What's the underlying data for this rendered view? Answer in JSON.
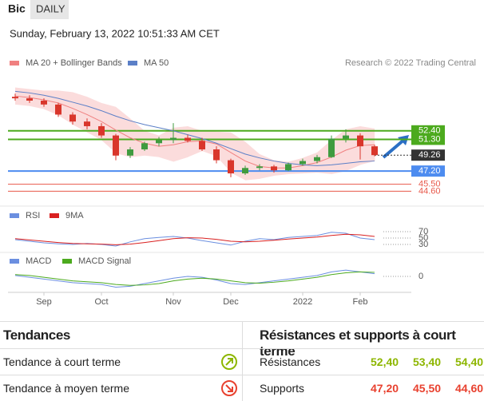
{
  "header": {
    "symbol": "Bic",
    "period": "DAILY",
    "date": "Sunday, February 13, 2022 10:51:33 AM CET",
    "source": "Research © 2022 Trading Central"
  },
  "chart_data": [
    {
      "type": "candlestick",
      "categories": [
        null,
        null,
        "Sep",
        null,
        null,
        null,
        "Oct",
        null,
        null,
        null,
        null,
        "Nov",
        null,
        null,
        null,
        "Dec",
        null,
        null,
        null,
        null,
        "2022",
        null,
        null,
        null,
        "Feb",
        null
      ],
      "open": [
        56.8,
        56.6,
        56.3,
        55.8,
        54.5,
        53.6,
        53.0,
        51.8,
        49.2,
        50.0,
        50.8,
        51.2,
        51.5,
        51.1,
        50.0,
        48.6,
        46.9,
        47.6,
        47.8,
        47.3,
        48.1,
        48.5,
        49.0,
        51.4,
        51.8,
        50.4
      ],
      "high": [
        57.2,
        57.0,
        56.6,
        56.0,
        54.8,
        54.0,
        53.4,
        52.0,
        50.3,
        51.0,
        51.6,
        53.4,
        51.9,
        51.5,
        50.4,
        48.8,
        47.9,
        48.1,
        48.0,
        48.3,
        48.8,
        49.3,
        51.8,
        52.6,
        52.1,
        50.6
      ],
      "low": [
        56.3,
        56.0,
        55.5,
        54.2,
        53.2,
        52.6,
        51.5,
        48.6,
        48.9,
        49.8,
        50.4,
        50.8,
        50.9,
        49.8,
        48.2,
        46.4,
        46.7,
        47.3,
        47.0,
        47.2,
        47.9,
        48.2,
        48.9,
        50.9,
        48.7,
        49.1
      ],
      "close": [
        56.6,
        56.3,
        55.8,
        54.5,
        53.6,
        53.0,
        51.8,
        49.2,
        50.0,
        50.8,
        51.2,
        51.5,
        51.1,
        50.0,
        48.6,
        46.9,
        47.6,
        47.8,
        47.3,
        48.1,
        48.5,
        49.0,
        51.4,
        51.8,
        50.4,
        49.26
      ],
      "up_color": "#3f9b3f",
      "down_color": "#d9362b",
      "series": [
        {
          "name": "MA 20 + Bollinger Bands",
          "color": "#f08080",
          "band_color": "#fbdcdc",
          "values": [
            56.9,
            56.7,
            56.4,
            56.0,
            55.3,
            54.5,
            53.6,
            52.5,
            51.5,
            50.8,
            50.4,
            50.6,
            51.0,
            51.1,
            50.7,
            49.6,
            48.5,
            47.8,
            47.6,
            47.6,
            47.9,
            48.3,
            49.0,
            49.9,
            50.5,
            50.6
          ],
          "upper": [
            58.0,
            57.8,
            57.6,
            57.6,
            57.4,
            56.8,
            56.0,
            55.5,
            54.0,
            52.4,
            51.8,
            52.8,
            53.0,
            52.4,
            52.3,
            52.2,
            51.0,
            49.4,
            48.6,
            48.4,
            48.9,
            49.6,
            51.2,
            52.6,
            53.0,
            52.7
          ],
          "lower": [
            55.8,
            55.6,
            55.2,
            54.4,
            53.2,
            52.2,
            51.2,
            49.5,
            49.0,
            49.2,
            49.0,
            48.4,
            49.0,
            49.8,
            49.1,
            47.0,
            46.0,
            46.2,
            46.6,
            46.8,
            46.9,
            47.0,
            46.8,
            47.2,
            48.0,
            48.5
          ]
        },
        {
          "name": "MA 50",
          "color": "#5b7fc7",
          "values": [
            57.5,
            57.3,
            57.0,
            56.6,
            56.1,
            55.6,
            55.0,
            54.3,
            53.7,
            53.2,
            52.8,
            52.4,
            51.9,
            51.4,
            50.8,
            50.1,
            49.4,
            48.9,
            48.5,
            48.2,
            48.0,
            47.9,
            48.0,
            48.2,
            48.4,
            48.5
          ]
        }
      ],
      "levels": [
        {
          "value": 52.4,
          "label": "52.40",
          "color": "#4caa1e",
          "boxed": true
        },
        {
          "value": 51.3,
          "label": "51.30",
          "color": "#4caa1e",
          "boxed": true
        },
        {
          "value": 49.26,
          "label": "49.26",
          "color": "#333333",
          "boxed": true,
          "dotted": true
        },
        {
          "value": 47.2,
          "label": "47.20",
          "color": "#4d8cf0",
          "boxed": true
        },
        {
          "value": 45.5,
          "label": "45.50",
          "color": "#e8584a",
          "boxed": false
        },
        {
          "value": 44.6,
          "label": "44.60",
          "color": "#e8584a",
          "boxed": false
        }
      ],
      "ylim": [
        43.5,
        59.5
      ]
    },
    {
      "type": "line",
      "series": [
        {
          "name": "RSI",
          "color": "#6b8fe0",
          "values": [
            45,
            40,
            35,
            32,
            30,
            33,
            30,
            25,
            38,
            48,
            52,
            55,
            50,
            42,
            35,
            28,
            40,
            48,
            45,
            52,
            55,
            58,
            68,
            65,
            50,
            45
          ]
        },
        {
          "name": "9MA",
          "color": "#d92020",
          "values": [
            48,
            44,
            40,
            36,
            33,
            32,
            31,
            29,
            31,
            36,
            42,
            48,
            51,
            50,
            46,
            40,
            38,
            40,
            43,
            47,
            50,
            53,
            58,
            62,
            60,
            55
          ]
        }
      ],
      "ylim": [
        0,
        100
      ],
      "yticks": [
        70,
        50,
        30
      ]
    },
    {
      "type": "line",
      "series": [
        {
          "name": "MACD",
          "color": "#6b8fe0",
          "values": [
            0.1,
            -0.1,
            -0.3,
            -0.5,
            -0.7,
            -0.8,
            -0.9,
            -1.2,
            -1.1,
            -0.8,
            -0.5,
            -0.2,
            0,
            -0.1,
            -0.4,
            -0.8,
            -0.9,
            -0.7,
            -0.5,
            -0.3,
            -0.1,
            0.1,
            0.5,
            0.7,
            0.5,
            0.3
          ]
        },
        {
          "name": "MACD Signal",
          "color": "#4caa1e",
          "values": [
            0.2,
            0.1,
            -0.1,
            -0.3,
            -0.5,
            -0.6,
            -0.7,
            -0.9,
            -1.0,
            -0.95,
            -0.8,
            -0.5,
            -0.3,
            -0.2,
            -0.3,
            -0.5,
            -0.7,
            -0.75,
            -0.65,
            -0.5,
            -0.3,
            -0.1,
            0.2,
            0.4,
            0.5,
            0.45
          ]
        }
      ],
      "ylim": [
        -1.6,
        1.6
      ],
      "yticks": [
        0
      ]
    }
  ],
  "trends": {
    "title": "Tendances",
    "rows": [
      "Tendance à court terme",
      "Tendance à moyen terme"
    ]
  },
  "levels_table": {
    "title": "Résistances et supports à court terme",
    "rows": [
      {
        "label": "Résistances",
        "values": [
          "52,40",
          "53,40",
          "54,40"
        ],
        "color": "#8db600"
      },
      {
        "label": "Supports",
        "values": [
          "47,20",
          "45,50",
          "44,60"
        ],
        "color": "#e8412f"
      }
    ]
  }
}
